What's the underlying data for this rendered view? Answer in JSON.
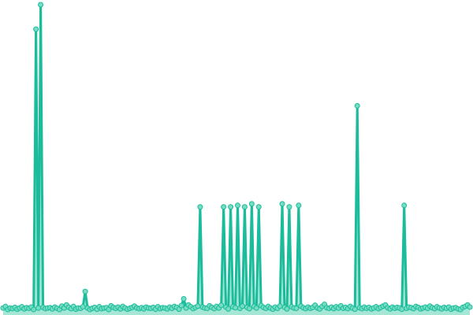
{
  "chart_data": {
    "type": "line",
    "title": "",
    "xlabel": "",
    "ylabel": "",
    "ylim": [
      0,
      100
    ],
    "grid": false,
    "legend": "none",
    "colors": {
      "line": "#1abc9c",
      "point_fill": "#76dcc2",
      "area": "#8ee0cb"
    },
    "values": [
      1,
      1.5,
      0.5,
      1,
      0.8,
      1.2,
      0.6,
      1,
      1.4,
      0.7,
      1.1,
      0.9,
      1.3,
      0.5,
      92,
      1,
      100,
      1.2,
      0.8,
      1,
      1.1,
      0.7,
      1.3,
      0.9,
      0.5,
      1.6,
      1,
      2,
      1.2,
      0.8,
      1.5,
      0.6,
      1,
      0.9,
      1.4,
      6.4,
      1,
      0.5,
      0.9,
      1.2,
      0.6,
      1.4,
      0.8,
      1,
      1.1,
      0.5,
      1.7,
      1.2,
      0.9,
      1.3,
      0.7,
      1.5,
      1,
      0.6,
      0.9,
      1.2,
      1.6,
      1,
      0.8,
      1.1,
      0.7,
      1.3,
      1,
      0.9,
      1.2,
      0.6,
      1.4,
      0.8,
      1.1,
      1,
      0.7,
      1.3,
      0.9,
      1.5,
      1.2,
      0.6,
      1.8,
      4,
      1,
      2,
      1.4,
      0.8,
      1.2,
      1.6,
      34,
      1.3,
      1,
      0.9,
      1.7,
      1.2,
      0.8,
      1.5,
      1,
      1.9,
      34,
      1.3,
      0.7,
      34,
      1.4,
      1.1,
      34.5,
      0.9,
      1.6,
      34,
      1.2,
      0.8,
      35,
      1.5,
      1,
      34,
      1.8,
      1.2,
      0.9,
      1.5,
      1,
      0.6,
      1.3,
      0.9,
      1.6,
      35,
      1.2,
      0.7,
      34,
      1.4,
      1,
      0.9,
      34.5,
      1.6,
      1.1,
      0.8,
      1.3,
      0.9,
      1.2,
      1.9,
      1,
      0.7,
      1.5,
      2.2,
      1.1,
      0.9,
      1.3,
      0.8,
      1.4,
      1,
      1.7,
      0.9,
      1.2,
      0.8,
      1.5,
      1,
      0.6,
      67,
      1.1,
      0.8,
      1.3,
      0.9,
      1.2,
      0.7,
      1,
      1.4,
      0.8,
      1.2,
      1.6,
      2,
      1.1,
      0.7,
      1.3,
      0.9,
      1.2,
      1,
      0.6,
      34.5,
      0.9,
      1.3,
      1.1,
      0.8,
      1.5,
      1.2,
      0.7,
      1,
      1.3,
      0.9,
      1.6,
      1.1,
      0.8,
      1.4,
      1,
      0.7,
      1.2,
      0.9,
      1.3,
      0.6,
      1,
      1.1,
      0.7,
      0.5,
      1.2,
      1.5,
      2,
      1.3
    ]
  }
}
